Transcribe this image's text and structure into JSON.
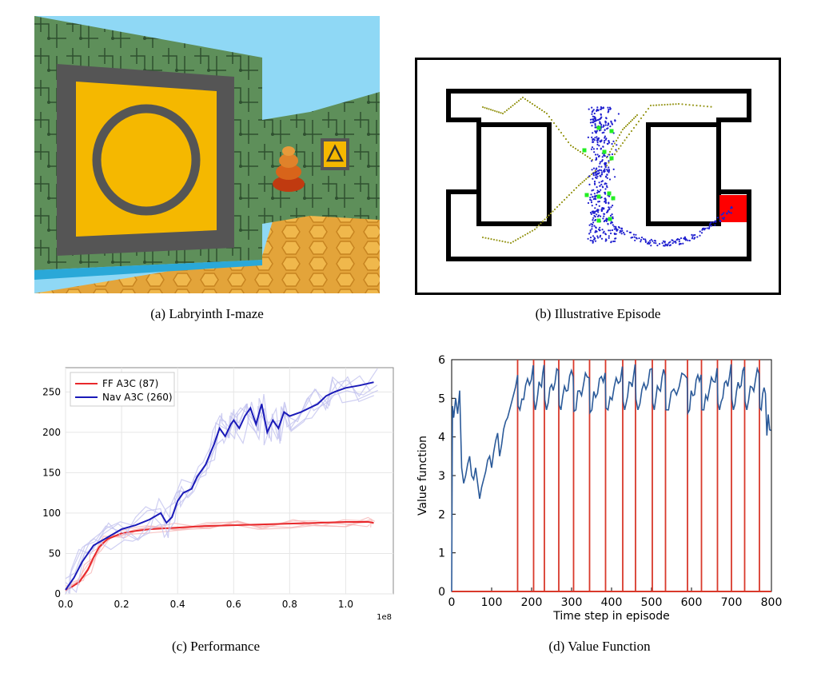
{
  "captions": {
    "a": {
      "tag": "(a)",
      "text": "Labryinth I-maze"
    },
    "b": {
      "tag": "(b)",
      "text": "Illustrative Episode"
    },
    "c": {
      "tag": "(c)",
      "text": "Performance"
    },
    "d": {
      "tag": "(d)",
      "text": "Value Function"
    }
  },
  "colors": {
    "sky": "#8fd8f5",
    "wall_green": "#5e8f5a",
    "floor_orange": "#e3a43a",
    "sign_yellow": "#f5b800",
    "sign_frame": "#555555",
    "maze_wall": "#000000",
    "goal_red": "#ff0000",
    "trajectory_blue": "#1f1fcf",
    "trajectory_olive": "#9a9a22",
    "marker_green": "#22ee22",
    "ff_red": "#e8282b",
    "nav_blue": "#1a1ab8",
    "value_blue": "#2b5a99",
    "reward_red": "#d9392b"
  },
  "icons": {
    "wall_sign_main": "circle-sign-icon",
    "wall_sign_far": "triangle-sign-icon",
    "object": "stacked-fruit-icon"
  },
  "chart_data": [
    {
      "panel": "c",
      "type": "line",
      "xlim": [
        0.0,
        1.17
      ],
      "ylim": [
        0,
        280
      ],
      "x_ticks": [
        "0.0",
        "0.2",
        "0.4",
        "0.6",
        "0.8",
        "1.0"
      ],
      "x_tick_values": [
        0.0,
        0.2,
        0.4,
        0.6,
        0.8,
        1.0
      ],
      "y_ticks": [
        "0",
        "50",
        "100",
        "150",
        "200",
        "250"
      ],
      "y_tick_values": [
        0,
        50,
        100,
        150,
        200,
        250
      ],
      "x_exponent": "1e8",
      "grid": true,
      "legend_placement": "top-left",
      "series": [
        {
          "name": "FF A3C (87)",
          "x": [
            0.0,
            0.02,
            0.05,
            0.08,
            0.1,
            0.12,
            0.15,
            0.2,
            0.25,
            0.3,
            0.4,
            0.5,
            0.6,
            0.7,
            0.8,
            0.9,
            1.0,
            1.08,
            1.1
          ],
          "values": [
            5,
            8,
            15,
            30,
            45,
            58,
            68,
            75,
            78,
            80,
            82,
            84,
            85,
            86,
            87,
            88,
            89,
            89,
            88
          ]
        },
        {
          "name": "Nav A3C (260)",
          "x": [
            0.0,
            0.03,
            0.06,
            0.1,
            0.15,
            0.2,
            0.25,
            0.3,
            0.34,
            0.36,
            0.38,
            0.4,
            0.42,
            0.45,
            0.47,
            0.5,
            0.53,
            0.55,
            0.57,
            0.59,
            0.6,
            0.62,
            0.64,
            0.66,
            0.68,
            0.7,
            0.72,
            0.74,
            0.76,
            0.78,
            0.8,
            0.84,
            0.87,
            0.9,
            0.93,
            0.96,
            1.0,
            1.05,
            1.1
          ],
          "values": [
            5,
            20,
            40,
            60,
            70,
            80,
            85,
            92,
            100,
            88,
            95,
            115,
            125,
            130,
            145,
            160,
            185,
            205,
            195,
            210,
            215,
            205,
            220,
            230,
            210,
            235,
            200,
            215,
            205,
            225,
            220,
            225,
            230,
            235,
            245,
            250,
            255,
            258,
            262
          ]
        }
      ]
    },
    {
      "panel": "d",
      "type": "line",
      "xlabel": "Time step in episode",
      "ylabel": "Value function",
      "xlim": [
        0,
        800
      ],
      "ylim": [
        0,
        6
      ],
      "x_ticks": [
        "0",
        "100",
        "200",
        "300",
        "400",
        "500",
        "600",
        "700",
        "800"
      ],
      "x_tick_values": [
        0,
        100,
        200,
        300,
        400,
        500,
        600,
        700,
        800
      ],
      "y_ticks": [
        "0",
        "1",
        "2",
        "3",
        "4",
        "5",
        "6"
      ],
      "y_tick_values": [
        0,
        1,
        2,
        3,
        4,
        5,
        6
      ],
      "grid": false,
      "reward_steps": [
        165,
        205,
        232,
        268,
        305,
        345,
        385,
        428,
        460,
        502,
        535,
        590,
        625,
        665,
        700,
        733,
        770
      ],
      "value_curve": {
        "x": [
          0,
          2,
          5,
          10,
          15,
          20,
          25,
          30,
          35,
          40,
          45,
          50,
          55,
          60,
          65,
          70,
          75,
          80,
          85,
          90,
          95,
          100,
          105,
          110,
          115,
          120,
          125,
          130,
          135,
          140,
          145,
          150,
          155,
          160,
          165
        ],
        "values": [
          0,
          4.8,
          4.5,
          5.0,
          4.6,
          5.2,
          3.2,
          2.8,
          3.0,
          3.3,
          3.5,
          3.0,
          2.9,
          3.2,
          2.8,
          2.4,
          2.7,
          2.9,
          3.1,
          3.4,
          3.5,
          3.2,
          3.6,
          3.9,
          4.1,
          3.5,
          3.8,
          4.2,
          4.4,
          4.5,
          4.7,
          4.9,
          5.1,
          5.3,
          5.6
        ]
      }
    }
  ]
}
